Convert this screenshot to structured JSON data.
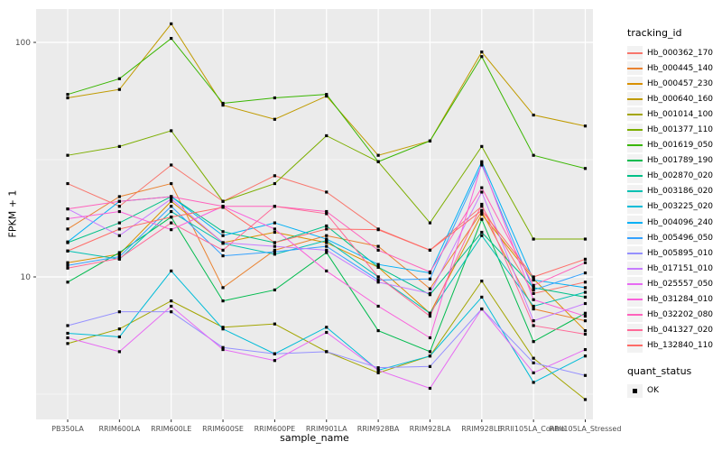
{
  "figure": {
    "bg": "#FFFFFF",
    "panel_bg": "#EBEBEB",
    "grid_color": "#FFFFFF",
    "tick_color": "#333333",
    "tick_label_color": "#4D4D4D",
    "axis_title_color": "#000000",
    "legend_key_bg": "#F2F2F2",
    "point_color": "#000000"
  },
  "chart_data": {
    "type": "line",
    "title": "",
    "xlabel": "sample_name",
    "ylabel": "FPKM + 1",
    "y_scale": "log10",
    "y_major_ticks": [
      10,
      100
    ],
    "y_minor_gridlines": [
      3.162,
      31.623
    ],
    "ylim": [
      2.45,
      139
    ],
    "grid": true,
    "legend_position": "right",
    "marker": "black-square",
    "categories": [
      "PB350LA",
      "RRIM600LA",
      "RRIM600LE",
      "RRIM600SE",
      "RRIM600PE",
      "RRIM901LA",
      "RRIM928BA",
      "RRIM928LA",
      "RRIM928LE",
      "RRII105LA_Control",
      "RRII105LA_Stressed"
    ],
    "series": [
      {
        "name": "Hb_000362_170",
        "color": "#F8766D",
        "values": [
          25,
          20,
          30,
          21,
          27,
          23,
          16,
          13,
          20,
          8.5,
          9.5
        ]
      },
      {
        "name": "Hb_000445_140",
        "color": "#EA8331",
        "values": [
          16,
          22,
          25,
          9,
          13,
          15,
          13.5,
          8.9,
          19,
          7.3,
          6.5
        ]
      },
      {
        "name": "Hb_000457_230",
        "color": "#D89000",
        "values": [
          11.5,
          12.5,
          21,
          14,
          15.5,
          14,
          11,
          7,
          18.5,
          9.8,
          5.9
        ]
      },
      {
        "name": "Hb_000640_160",
        "color": "#C09B00",
        "values": [
          58,
          63,
          120,
          54,
          47,
          59,
          33,
          38,
          91,
          49,
          44
        ]
      },
      {
        "name": "Hb_001014_100",
        "color": "#A3A500",
        "values": [
          5.2,
          6,
          7.9,
          6.1,
          6.3,
          4.8,
          3.9,
          4.6,
          9.6,
          4.5,
          3
        ]
      },
      {
        "name": "Hb_001377_110",
        "color": "#7CAE00",
        "values": [
          33,
          36,
          42,
          21,
          25,
          40,
          31,
          17,
          36,
          14.5,
          14.5
        ]
      },
      {
        "name": "Hb_001619_050",
        "color": "#39B600",
        "values": [
          60,
          70,
          104,
          55,
          58,
          60,
          31,
          38,
          87,
          33,
          29
        ]
      },
      {
        "name": "Hb_001789_190",
        "color": "#00BB4E",
        "values": [
          9.5,
          12.7,
          18,
          7.9,
          8.8,
          12.7,
          5.9,
          4.8,
          17.6,
          5.3,
          7
        ]
      },
      {
        "name": "Hb_002870_020",
        "color": "#00C087",
        "values": [
          14,
          17,
          22,
          15.6,
          14,
          16.5,
          11,
          8.4,
          15.5,
          9,
          8.2
        ]
      },
      {
        "name": "Hb_003186_020",
        "color": "#00C0B2",
        "values": [
          12.9,
          11.9,
          19,
          13.9,
          12.5,
          14.3,
          10,
          7,
          15,
          7.5,
          8.6
        ]
      },
      {
        "name": "Hb_003225_020",
        "color": "#00BCD8",
        "values": [
          5.75,
          5.55,
          10.6,
          6,
          4.7,
          6.1,
          4,
          4.6,
          8.2,
          3.55,
          4.6
        ]
      },
      {
        "name": "Hb_004096_240",
        "color": "#00B0F6",
        "values": [
          14.1,
          21,
          22,
          15,
          17,
          14.5,
          11.3,
          10.4,
          31,
          9.7,
          9
        ]
      },
      {
        "name": "Hb_005496_050",
        "color": "#35A2FF",
        "values": [
          11.2,
          12.2,
          20,
          12.3,
          12.8,
          13.5,
          9.7,
          9.8,
          30,
          8.8,
          10.4
        ]
      },
      {
        "name": "Hb_005895_010",
        "color": "#9590FF",
        "values": [
          6.2,
          7.1,
          7.1,
          5,
          4.7,
          4.8,
          4.1,
          4.15,
          7.3,
          4.3,
          3.8
        ]
      },
      {
        "name": "Hb_017151_010",
        "color": "#C77CFF",
        "values": [
          19.5,
          15,
          21.5,
          14,
          13.5,
          13,
          9.5,
          8.5,
          23,
          6.5,
          7.7
        ]
      },
      {
        "name": "Hb_025557_050",
        "color": "#E76BF3",
        "values": [
          5.5,
          4.8,
          7.5,
          4.9,
          4.4,
          5.8,
          4,
          3.35,
          7.3,
          3.9,
          4.9
        ]
      },
      {
        "name": "Hb_031284_010",
        "color": "#FA62DB",
        "values": [
          17.7,
          19,
          15.9,
          20,
          16,
          10.6,
          7.5,
          5.5,
          30.5,
          8,
          6.8
        ]
      },
      {
        "name": "Hb_032202_080",
        "color": "#FF62BC",
        "values": [
          19.5,
          21,
          22,
          20,
          20,
          19,
          13,
          10.5,
          24,
          9.2,
          11.5
        ]
      },
      {
        "name": "Hb_041327_020",
        "color": "#FF6A98",
        "values": [
          10.9,
          12,
          17,
          13,
          20,
          18.6,
          10,
          6.8,
          20.4,
          6.2,
          5.7
        ]
      },
      {
        "name": "Hb_132840_110",
        "color": "#FF6C67",
        "values": [
          12.9,
          16,
          18,
          19.8,
          14,
          16,
          15.9,
          13,
          19.2,
          10,
          11.9
        ]
      }
    ],
    "legend": {
      "title": "tracking_id",
      "quant_status": {
        "title": "quant_status",
        "items": [
          "OK"
        ]
      }
    }
  }
}
